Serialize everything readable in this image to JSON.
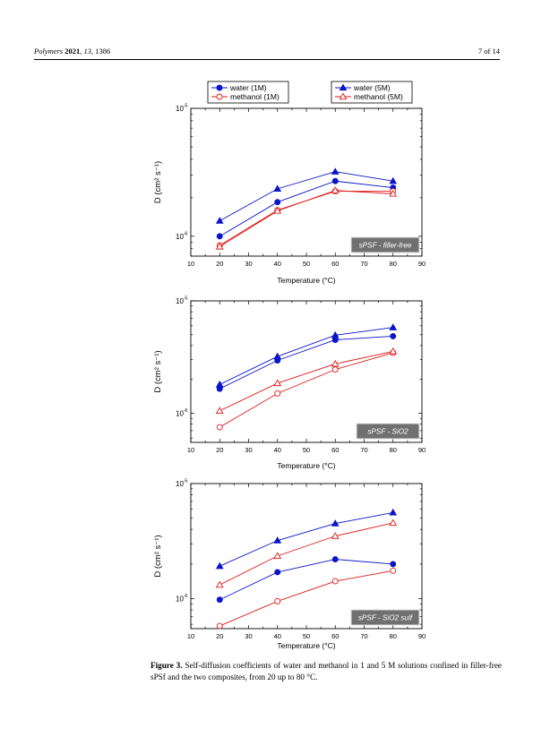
{
  "header": {
    "journal": "Polymers",
    "year": "2021",
    "volume": "13",
    "article": "1386",
    "page": "7 of 14"
  },
  "legend": {
    "box1": [
      "water (1M)",
      "methanol (1M)"
    ],
    "box2": [
      "water (5M)",
      "methanol (5M)"
    ]
  },
  "colors": {
    "water": "#0a14c8",
    "methanol": "#dd1a1a",
    "label_box": "#707070"
  },
  "chart_data": [
    {
      "type": "line",
      "panel_label": "sPSF - filler-free",
      "xlabel": "Temperature (°C)",
      "ylabel": "D (cm² s⁻¹)",
      "xlim": [
        10,
        90
      ],
      "xticks": [
        "10",
        "20",
        "30",
        "40",
        "50",
        "60",
        "70",
        "80",
        "90"
      ],
      "yscale": "log",
      "ylim": [
        7e-07,
        1e-05
      ],
      "ytick_labels": [
        "10-6",
        "10-5"
      ],
      "x": [
        20,
        40,
        60,
        80
      ],
      "series": [
        {
          "name": "water (1M)",
          "marker": "filled-circle",
          "color": "#0a14c8",
          "values": [
            1e-06,
            1.85e-06,
            2.7e-06,
            2.4e-06
          ]
        },
        {
          "name": "methanol (1M)",
          "marker": "open-circle",
          "color": "#dd1a1a",
          "values": [
            8.5e-07,
            1.6e-06,
            2.25e-06,
            2.25e-06
          ]
        },
        {
          "name": "water (5M)",
          "marker": "filled-triangle",
          "color": "#0a14c8",
          "values": [
            1.32e-06,
            2.35e-06,
            3.2e-06,
            2.7e-06
          ]
        },
        {
          "name": "methanol (5M)",
          "marker": "open-triangle",
          "color": "#dd1a1a",
          "values": [
            8.3e-07,
            1.58e-06,
            2.28e-06,
            2.15e-06
          ]
        }
      ]
    },
    {
      "type": "line",
      "panel_label": "sPSF - SiO2",
      "xlabel": "Temperature (°C)",
      "ylabel": "D (cm² s⁻¹)",
      "xlim": [
        10,
        90
      ],
      "xticks": [
        "10",
        "20",
        "30",
        "40",
        "50",
        "60",
        "70",
        "80",
        "90"
      ],
      "yscale": "log",
      "ylim": [
        5.5e-07,
        1e-05
      ],
      "ytick_labels": [
        "10-6",
        "10-5"
      ],
      "x": [
        20,
        40,
        60,
        80
      ],
      "series": [
        {
          "name": "water (1M)",
          "marker": "filled-circle",
          "color": "#0a14c8",
          "values": [
            1.65e-06,
            2.95e-06,
            4.5e-06,
            4.85e-06
          ]
        },
        {
          "name": "methanol (1M)",
          "marker": "open-circle",
          "color": "#dd1a1a",
          "values": [
            7.5e-07,
            1.5e-06,
            2.45e-06,
            3.45e-06
          ]
        },
        {
          "name": "water (5M)",
          "marker": "filled-triangle",
          "color": "#0a14c8",
          "values": [
            1.8e-06,
            3.2e-06,
            4.95e-06,
            5.8e-06
          ]
        },
        {
          "name": "methanol (5M)",
          "marker": "open-triangle",
          "color": "#dd1a1a",
          "values": [
            1.05e-06,
            1.85e-06,
            2.75e-06,
            3.55e-06
          ]
        }
      ]
    },
    {
      "type": "line",
      "panel_label": "sPSF - SiO2 sulf",
      "xlabel": "Temperature (°C)",
      "ylabel": "D (cm² s⁻¹)",
      "xlim": [
        10,
        90
      ],
      "xticks": [
        "10",
        "20",
        "30",
        "40",
        "50",
        "60",
        "70",
        "80",
        "90"
      ],
      "yscale": "log",
      "ylim": [
        5.5e-07,
        1e-05
      ],
      "ytick_labels": [
        "10-6",
        "10-5"
      ],
      "x": [
        20,
        40,
        60,
        80
      ],
      "series": [
        {
          "name": "water (1M)",
          "marker": "filled-circle",
          "color": "#0a14c8",
          "values": [
            9.8e-07,
            1.7e-06,
            2.2e-06,
            2e-06
          ]
        },
        {
          "name": "methanol (1M)",
          "marker": "open-circle",
          "color": "#dd1a1a",
          "values": [
            5.8e-07,
            9.5e-07,
            1.42e-06,
            1.75e-06
          ]
        },
        {
          "name": "water (5M)",
          "marker": "filled-triangle",
          "color": "#0a14c8",
          "values": [
            1.92e-06,
            3.2e-06,
            4.5e-06,
            5.6e-06
          ]
        },
        {
          "name": "methanol (5M)",
          "marker": "open-triangle",
          "color": "#dd1a1a",
          "values": [
            1.32e-06,
            2.35e-06,
            3.5e-06,
            4.55e-06
          ]
        }
      ]
    }
  ],
  "caption": {
    "label": "Figure 3.",
    "text": "Self-diffusion coefficients of water and methanol in 1 and 5 M solutions confined in filler-free sPSf and the two composites, from 20 up to 80 °C."
  }
}
